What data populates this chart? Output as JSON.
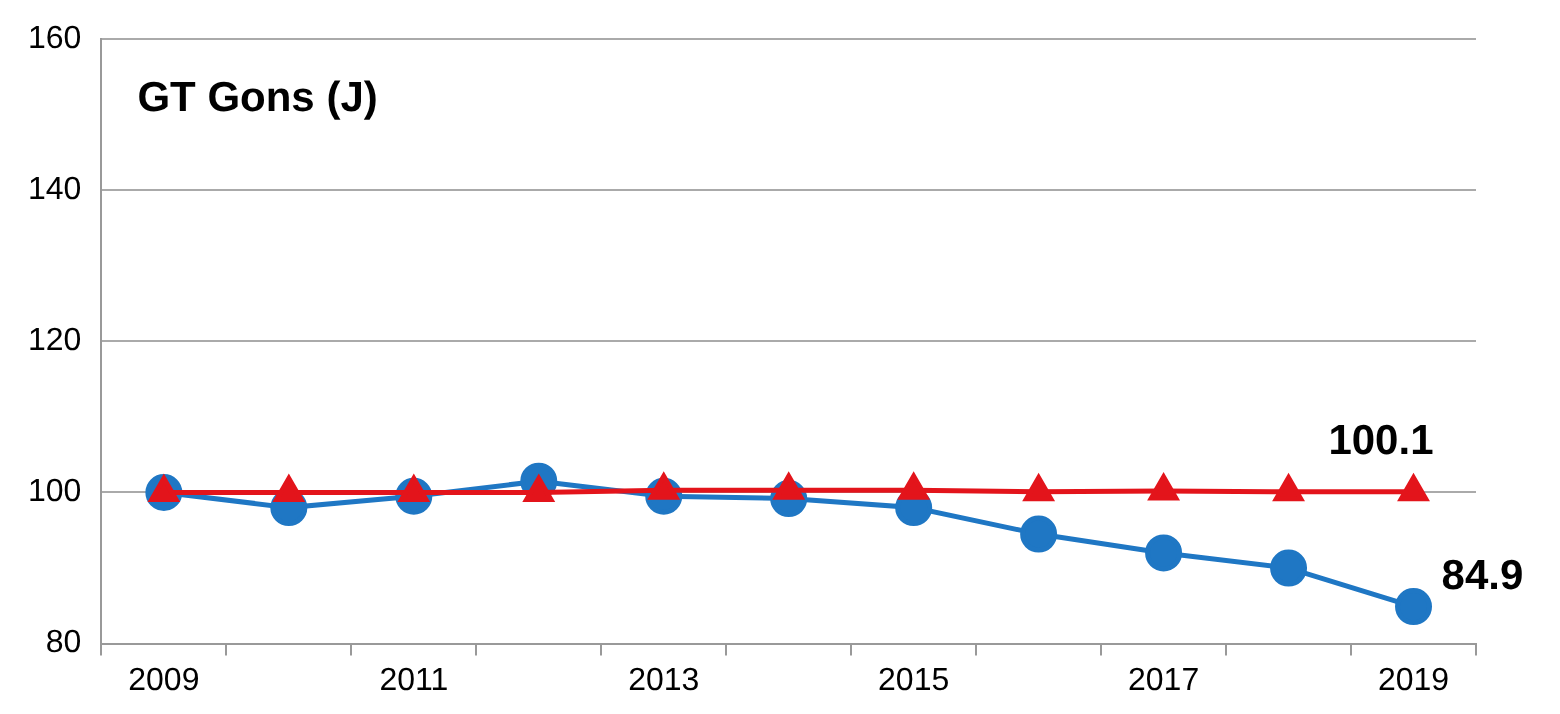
{
  "chart_data": {
    "type": "line",
    "title": "GT Gons (J)",
    "categories": [
      "2009",
      null,
      "2011",
      null,
      "2013",
      null,
      "2015",
      null,
      "2017",
      null,
      "2019"
    ],
    "series": [
      {
        "color": "#e3141b",
        "marker": "triangle",
        "values": [
          100,
          100,
          100,
          100,
          100.3,
          100.3,
          100.3,
          100.1,
          100.2,
          100.1,
          100.1
        ],
        "value_labels": [
          null,
          null,
          null,
          null,
          null,
          null,
          null,
          null,
          null,
          null,
          "100.1"
        ]
      },
      {
        "color": "#1f77c4",
        "marker": "circle",
        "values": [
          100,
          98,
          99.5,
          101.5,
          99.5,
          99.2,
          98,
          94.5,
          92,
          90,
          84.9
        ],
        "value_labels": [
          null,
          null,
          null,
          null,
          null,
          null,
          null,
          null,
          null,
          null,
          "84.9"
        ]
      }
    ],
    "ylim": [
      80,
      160
    ],
    "yticks": [
      80,
      100,
      120,
      140,
      160
    ],
    "grid": "y",
    "legend": false
  }
}
